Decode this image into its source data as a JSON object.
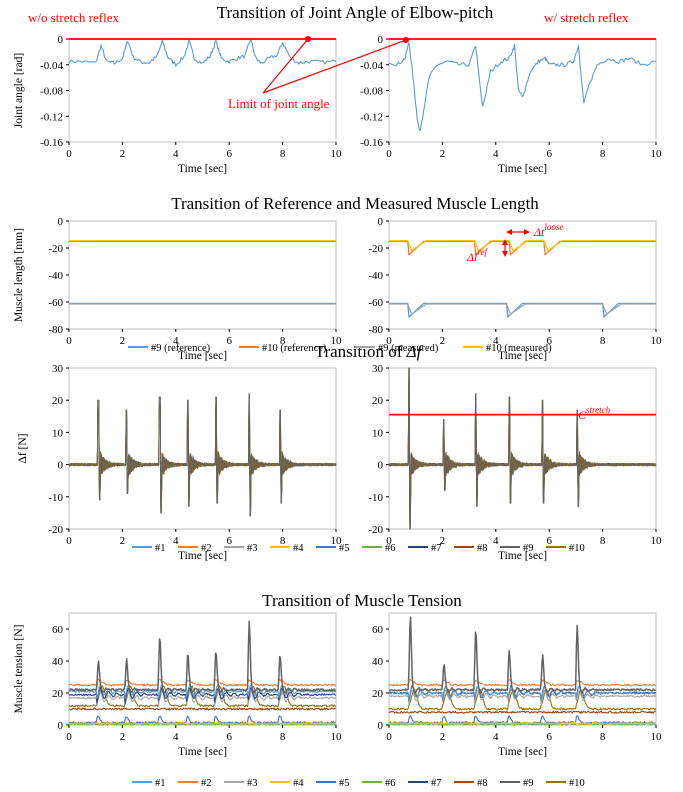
{
  "figure": {
    "headers": {
      "left": "w/o stretch reflex",
      "right": "w/ stretch reflex"
    },
    "section_titles": [
      "Transition of Joint Angle of Elbow-pitch",
      "Transition of Reference and Measured Muscle Length",
      "Transition of Δf",
      "Transition of Muscle Tension"
    ],
    "annotations": {
      "limit_of_joint_angle": "Limit of joint angle",
      "delta_t_loose": "Δt",
      "delta_t_loose_sup": "loose",
      "delta_l_ref": "Δl",
      "delta_l_ref_sup": "ref",
      "c_stretch": "C",
      "c_stretch_sup": "stretch"
    },
    "colors": {
      "red_annotation": "#ff0000",
      "#1": "#5b9bd5",
      "#2": "#ed7d31",
      "#3": "#a5a5a5",
      "#4": "#ffc000",
      "#5": "#4472c4",
      "#6": "#70ad47",
      "#7": "#264478",
      "#8": "#9e480e",
      "#9": "#636363",
      "#10": "#997300"
    }
  },
  "chart_data": [
    {
      "id": "angle-left",
      "type": "line",
      "title": "Transition of Joint Angle of Elbow-pitch",
      "xlabel": "Time [sec]",
      "ylabel": "Joint angle [rad]",
      "xlim": [
        0,
        10
      ],
      "ylim": [
        -0.16,
        0
      ],
      "xticks": [
        0,
        2,
        4,
        6,
        8,
        10
      ],
      "yticks": [
        0,
        -0.04,
        -0.08,
        -0.12,
        -0.16
      ],
      "ytick_labels": [
        "0",
        "-0.04",
        "-0.08",
        "-0.12",
        "-0.16"
      ],
      "hlines": [
        {
          "y": 0,
          "color": "#ff0000",
          "label": "Limit of joint angle"
        }
      ],
      "series": [
        {
          "color": "#5b9bd5",
          "x": [
            0,
            0.5,
            1.0,
            1.2,
            1.4,
            1.7,
            2.0,
            2.2,
            2.4,
            2.7,
            3.0,
            3.3,
            3.5,
            3.7,
            4.0,
            4.3,
            4.5,
            4.7,
            5.0,
            5.3,
            5.5,
            5.7,
            6.0,
            6.3,
            6.6,
            6.8,
            7.0,
            7.2,
            7.5,
            7.8,
            8.0,
            8.3,
            8.6,
            9.0,
            9.5,
            10.0
          ],
          "y": [
            -0.035,
            -0.035,
            -0.037,
            -0.01,
            -0.035,
            -0.038,
            -0.03,
            -0.002,
            -0.028,
            -0.036,
            -0.037,
            -0.027,
            -0.003,
            -0.028,
            -0.04,
            -0.028,
            -0.004,
            -0.03,
            -0.038,
            -0.026,
            -0.003,
            -0.03,
            -0.035,
            -0.03,
            -0.026,
            0.0,
            -0.03,
            -0.038,
            -0.03,
            -0.025,
            -0.005,
            -0.03,
            -0.037,
            -0.035,
            -0.036,
            -0.035
          ]
        }
      ]
    },
    {
      "id": "angle-right",
      "type": "line",
      "xlabel": "Time [sec]",
      "xlim": [
        0,
        10
      ],
      "ylim": [
        -0.16,
        0
      ],
      "xticks": [
        0,
        2,
        4,
        6,
        8,
        10
      ],
      "yticks": [
        0,
        -0.04,
        -0.08,
        -0.12,
        -0.16
      ],
      "ytick_labels": [
        "0",
        "-0.04",
        "-0.08",
        "-0.12",
        "-0.16"
      ],
      "hlines": [
        {
          "y": 0,
          "color": "#ff0000"
        }
      ],
      "series": [
        {
          "color": "#5b9bd5",
          "x": [
            0,
            0.3,
            0.6,
            0.75,
            0.9,
            1.05,
            1.15,
            1.3,
            1.5,
            1.8,
            2.2,
            2.6,
            3.0,
            3.25,
            3.4,
            3.5,
            3.6,
            3.8,
            4.2,
            4.5,
            4.7,
            4.85,
            5.0,
            5.3,
            5.6,
            5.85,
            6.0,
            6.3,
            6.6,
            6.9,
            7.1,
            7.2,
            7.3,
            7.5,
            7.8,
            8.2,
            8.6,
            9.0,
            9.5,
            10.0
          ],
          "y": [
            -0.035,
            -0.04,
            -0.03,
            -0.005,
            -0.06,
            -0.12,
            -0.145,
            -0.11,
            -0.06,
            -0.04,
            -0.035,
            -0.04,
            -0.04,
            -0.01,
            -0.07,
            -0.105,
            -0.09,
            -0.05,
            -0.035,
            -0.03,
            -0.01,
            -0.08,
            -0.09,
            -0.05,
            -0.035,
            -0.03,
            -0.04,
            -0.04,
            -0.04,
            -0.035,
            -0.01,
            -0.06,
            -0.1,
            -0.07,
            -0.04,
            -0.03,
            -0.035,
            -0.03,
            -0.04,
            -0.035
          ]
        }
      ]
    },
    {
      "id": "length-left",
      "type": "line",
      "title": "Transition of Reference and Measured Muscle Length",
      "xlabel": "Time [sec]",
      "ylabel": "Muscle length [mm]",
      "xlim": [
        0,
        10
      ],
      "ylim": [
        -80,
        0
      ],
      "xticks": [
        0,
        2,
        4,
        6,
        8,
        10
      ],
      "yticks": [
        0,
        -20,
        -40,
        -60,
        -80
      ],
      "ytick_labels": [
        "0",
        "-20",
        "-40",
        "-60",
        "-80"
      ],
      "series": [
        {
          "name": "#9 (reference)",
          "color": "#5b9bd5",
          "x": [
            0,
            10
          ],
          "y": [
            -61,
            -61
          ]
        },
        {
          "name": "#10 (reference)",
          "color": "#ed7d31",
          "x": [
            0,
            10
          ],
          "y": [
            -15,
            -15
          ]
        },
        {
          "name": "#9 (measured)",
          "color": "#a5a5a5",
          "x": [
            0,
            10
          ],
          "y": [
            -61.5,
            -61.5
          ]
        },
        {
          "name": "#10 (measured)",
          "color": "#ffc000",
          "x": [
            0,
            10
          ],
          "y": [
            -14.5,
            -14.5
          ]
        }
      ]
    },
    {
      "id": "length-right",
      "type": "line",
      "xlabel": "Time [sec]",
      "xlim": [
        0,
        10
      ],
      "ylim": [
        -80,
        0
      ],
      "xticks": [
        0,
        2,
        4,
        6,
        8,
        10
      ],
      "yticks": [
        0,
        -20,
        -40,
        -60,
        -80
      ],
      "ytick_labels": [
        "0",
        "-20",
        "-40",
        "-60",
        "-80"
      ],
      "series": [
        {
          "name": "#9 (reference)",
          "color": "#5b9bd5",
          "x": [
            0,
            0.7,
            0.75,
            1.3,
            4.4,
            4.45,
            5.0,
            8.0,
            8.05,
            8.6,
            10
          ],
          "y": [
            -61,
            -61,
            -71,
            -61,
            -61,
            -71,
            -61,
            -61,
            -71,
            -61,
            -61
          ]
        },
        {
          "name": "#10 (reference)",
          "color": "#ed7d31",
          "x": [
            0,
            0.7,
            0.75,
            1.3,
            3.2,
            3.25,
            3.8,
            4.5,
            4.55,
            5.1,
            5.8,
            5.85,
            6.4,
            10
          ],
          "y": [
            -15,
            -15,
            -25,
            -15,
            -15,
            -25,
            -15,
            -15,
            -25,
            -15,
            -15,
            -25,
            -15,
            -15
          ]
        },
        {
          "name": "#9 (measured)",
          "color": "#a5a5a5",
          "x": [
            0,
            0.7,
            0.85,
            1.4,
            4.4,
            4.55,
            5.1,
            8.0,
            8.15,
            8.7,
            10
          ],
          "y": [
            -61.5,
            -61.5,
            -69,
            -61.5,
            -61.5,
            -69,
            -61.5,
            -61.5,
            -69,
            -61.5,
            -61.5
          ]
        },
        {
          "name": "#10 (measured)",
          "color": "#ffc000",
          "x": [
            0,
            0.7,
            0.85,
            1.4,
            3.2,
            3.35,
            3.9,
            4.5,
            4.65,
            5.2,
            5.8,
            5.95,
            6.5,
            10
          ],
          "y": [
            -14.5,
            -14.5,
            -22,
            -14.5,
            -14.5,
            -22,
            -14.5,
            -14.5,
            -22,
            -14.5,
            -14.5,
            -22,
            -14.5,
            -14.5
          ]
        }
      ]
    },
    {
      "id": "df-left",
      "type": "line",
      "title": "Transition of Δf",
      "xlabel": "Time [sec]",
      "ylabel": "Δf  [N]",
      "xlim": [
        0,
        10
      ],
      "ylim": [
        -20,
        30
      ],
      "xticks": [
        0,
        2,
        4,
        6,
        8,
        10
      ],
      "yticks": [
        30,
        20,
        10,
        0,
        -10,
        -20
      ],
      "ytick_labels": [
        "30",
        "20",
        "10",
        "0",
        "-10",
        "-20"
      ],
      "spikes": [
        {
          "t": 1.1,
          "peak": 20,
          "trough": -11
        },
        {
          "t": 2.15,
          "peak": 17,
          "trough": -9
        },
        {
          "t": 3.4,
          "peak": 21,
          "trough": -15
        },
        {
          "t": 4.45,
          "peak": 20,
          "trough": -13
        },
        {
          "t": 5.5,
          "peak": 21,
          "trough": -12
        },
        {
          "t": 6.75,
          "peak": 22,
          "trough": -16
        },
        {
          "t": 7.9,
          "peak": 17,
          "trough": -12
        }
      ]
    },
    {
      "id": "df-right",
      "type": "line",
      "xlabel": "Time [sec]",
      "xlim": [
        0,
        10
      ],
      "ylim": [
        -20,
        30
      ],
      "xticks": [
        0,
        2,
        4,
        6,
        8,
        10
      ],
      "yticks": [
        30,
        20,
        10,
        0,
        -10,
        -20
      ],
      "ytick_labels": [
        "30",
        "20",
        "10",
        "0",
        "-10",
        "-20"
      ],
      "hlines": [
        {
          "y": 15.5,
          "color": "#ff0000",
          "label": "C stretch"
        }
      ],
      "spikes": [
        {
          "t": 0.75,
          "peak": 30,
          "trough": -20
        },
        {
          "t": 2.05,
          "peak": 14,
          "trough": -8
        },
        {
          "t": 3.25,
          "peak": 22,
          "trough": -13
        },
        {
          "t": 4.5,
          "peak": 21,
          "trough": -12
        },
        {
          "t": 5.75,
          "peak": 20,
          "trough": -12
        },
        {
          "t": 7.05,
          "peak": 17,
          "trough": -13
        }
      ]
    },
    {
      "id": "tension-left",
      "type": "line",
      "title": "Transition of Muscle Tension",
      "xlabel": "Time [sec]",
      "ylabel": "Muscle tension [N]",
      "xlim": [
        0,
        10
      ],
      "ylim": [
        0,
        70
      ],
      "xticks": [
        0,
        2,
        4,
        6,
        8,
        10
      ],
      "yticks": [
        0,
        20,
        40,
        60
      ],
      "ytick_labels": [
        "0",
        "20",
        "40",
        "60"
      ],
      "events": [
        1.1,
        2.15,
        3.4,
        4.45,
        5.5,
        6.75,
        7.9
      ],
      "baselines": {
        "#1": 21,
        "#2": 25,
        "#3": 17,
        "#4": 1,
        "#5": 1.5,
        "#6": 0.5,
        "#7": 19,
        "#8": 10,
        "#9": 22,
        "#10": 12
      },
      "peaks_#9": [
        40,
        41,
        56,
        45,
        46,
        65,
        44
      ]
    },
    {
      "id": "tension-right",
      "type": "line",
      "xlabel": "Time [sec]",
      "xlim": [
        0,
        10
      ],
      "ylim": [
        0,
        70
      ],
      "xticks": [
        0,
        2,
        4,
        6,
        8,
        10
      ],
      "yticks": [
        0,
        20,
        40,
        60
      ],
      "ytick_labels": [
        "0",
        "20",
        "40",
        "60"
      ],
      "events": [
        0.8,
        2.05,
        3.25,
        4.5,
        5.75,
        7.05
      ],
      "baselines": {
        "#1": 20,
        "#2": 25,
        "#3": 18,
        "#4": 1,
        "#5": 1.5,
        "#6": 0.5,
        "#7": 20,
        "#8": 8,
        "#9": 22,
        "#10": 10
      },
      "peaks_#9": [
        68,
        38,
        60,
        46,
        44,
        62
      ]
    }
  ],
  "legend_length": [
    "#9 (reference)",
    "#10 (reference)",
    "#9 (measured)",
    "#10 (measured)"
  ],
  "legend_muscles": [
    "#1",
    "#2",
    "#3",
    "#4",
    "#5",
    "#6",
    "#7",
    "#8",
    "#9",
    "#10"
  ]
}
